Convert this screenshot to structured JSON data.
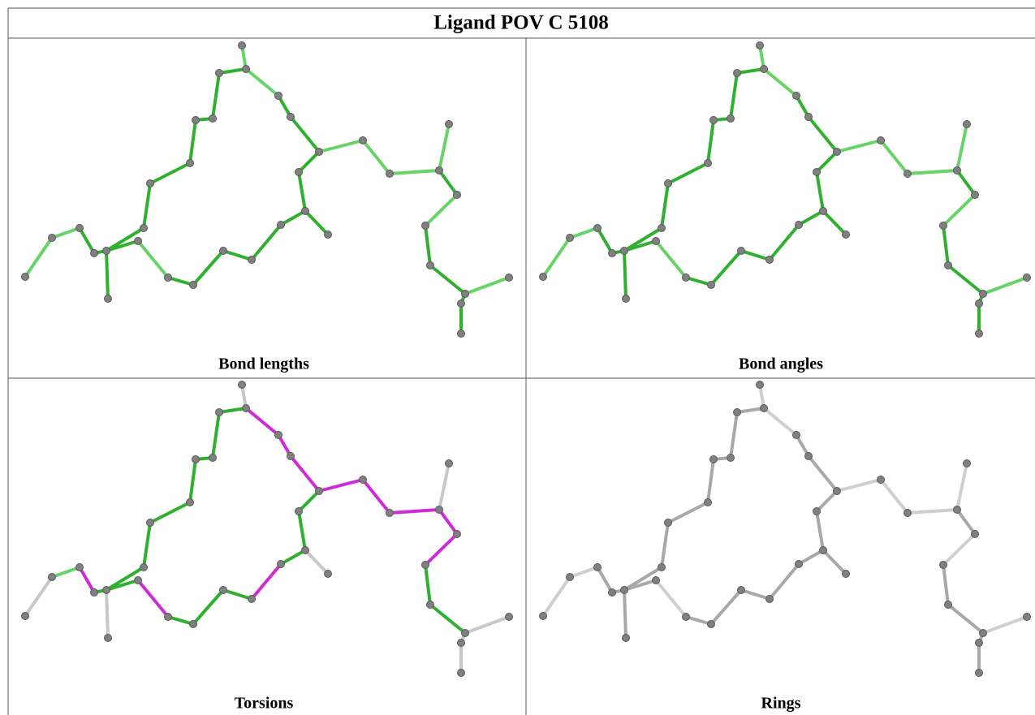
{
  "header": {
    "title": "Ligand POV C 5108"
  },
  "panels": [
    {
      "caption": "Bond lengths"
    },
    {
      "caption": "Bond angles"
    },
    {
      "caption": "Torsions"
    },
    {
      "caption": "Rings"
    }
  ]
}
